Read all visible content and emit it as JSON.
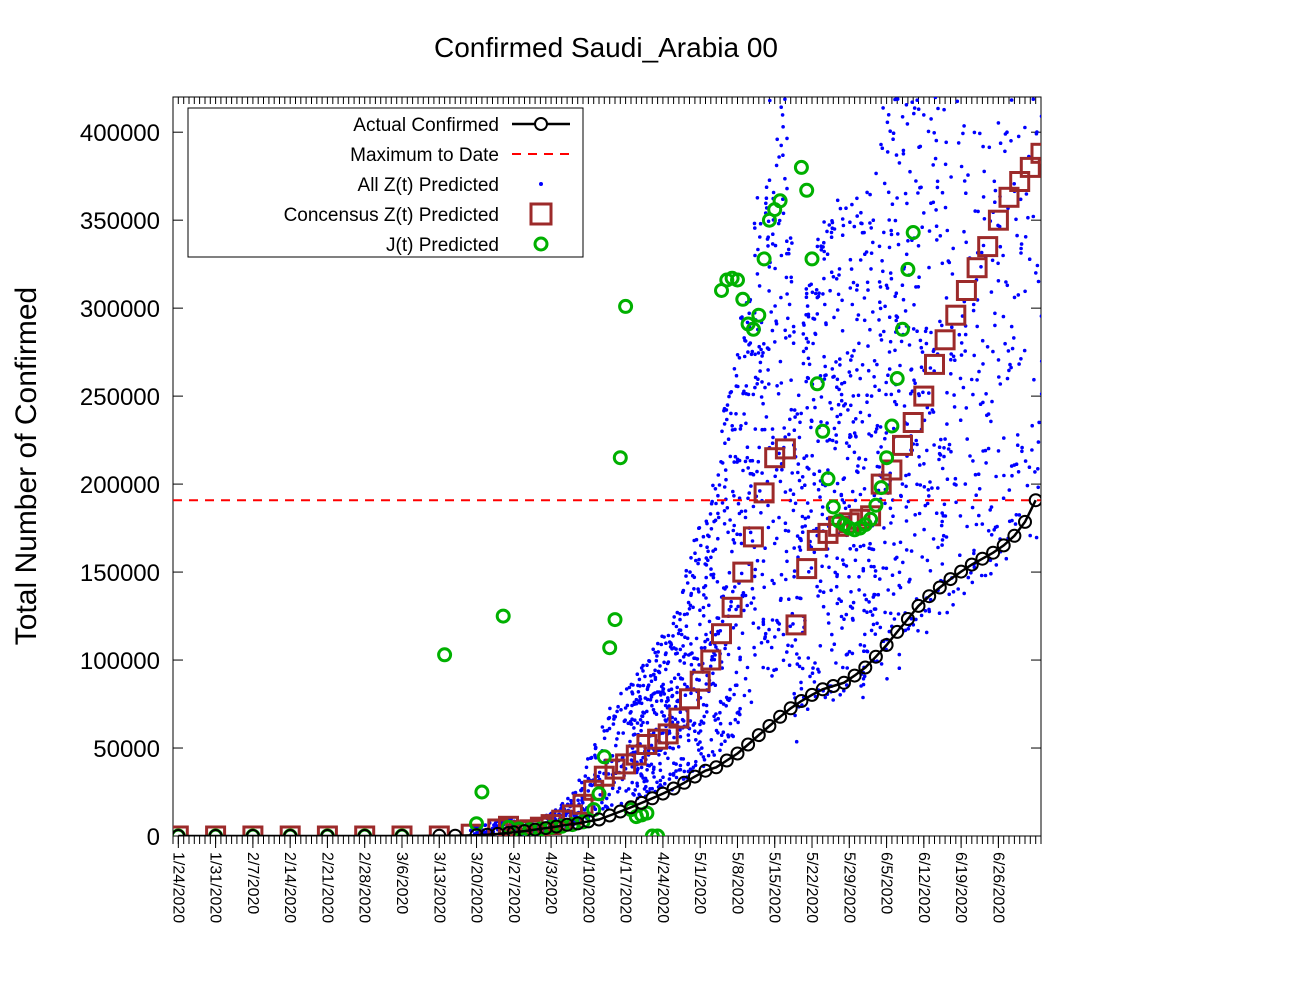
{
  "chart_data": {
    "type": "scatter",
    "title": "Confirmed Saudi_Arabia 00",
    "xlabel": "",
    "ylabel": "Total Number of Confirmed",
    "ylim": [
      0,
      420000
    ],
    "yticks": [
      0,
      50000,
      100000,
      150000,
      200000,
      250000,
      300000,
      350000,
      400000
    ],
    "ytick_labels": [
      "0",
      "50000",
      "100000",
      "150000",
      "200000",
      "250000",
      "300000",
      "350000",
      "400000"
    ],
    "xrange_days": [
      -1,
      162
    ],
    "xtick_labels": [
      "1/24/2020",
      "1/31/2020",
      "2/7/2020",
      "2/14/2020",
      "2/21/2020",
      "2/28/2020",
      "3/6/2020",
      "3/13/2020",
      "3/20/2020",
      "3/27/2020",
      "4/3/2020",
      "4/10/2020",
      "4/17/2020",
      "4/24/2020",
      "5/1/2020",
      "5/8/2020",
      "5/15/2020",
      "5/22/2020",
      "5/29/2020",
      "6/5/2020",
      "6/12/2020",
      "6/19/2020",
      "6/26/2020"
    ],
    "legend_position": "top-left",
    "grid": false,
    "max_to_date": 190823,
    "series": [
      {
        "name": "Actual Confirmed",
        "color": "#000000",
        "x": [
          0,
          7,
          14,
          21,
          28,
          35,
          42,
          49,
          52,
          56,
          58,
          60,
          62,
          63,
          65,
          67,
          69,
          71,
          73,
          75,
          77,
          79,
          81,
          83,
          85,
          87,
          89,
          91,
          93,
          95,
          97,
          99,
          101,
          103,
          105,
          107,
          109,
          111,
          113,
          115,
          117,
          119,
          121,
          123,
          125,
          127,
          129,
          131,
          133,
          135,
          137,
          139,
          141,
          143,
          145,
          147,
          149,
          151,
          153,
          155,
          157,
          159,
          161
        ],
        "values": [
          0,
          0,
          0,
          0,
          0,
          0,
          0,
          86,
          171,
          392,
          767,
          1203,
          1720,
          2179,
          2795,
          3651,
          4462,
          5369,
          6380,
          7142,
          8274,
          9362,
          11631,
          13930,
          16299,
          18811,
          21402,
          24097,
          27011,
          30251,
          33731,
          37136,
          39048,
          42925,
          46869,
          52016,
          57345,
          62545,
          67719,
          72560,
          76726,
          80185,
          83384,
          85261,
          87142,
          91182,
          95748,
          101914,
          108571,
          116021,
          123308,
          130774,
          136315,
          141234,
          145991,
          150292,
          154233,
          157612,
          161005,
          165154,
          170639,
          178504,
          190823
        ]
      },
      {
        "name": "Maximum to Date",
        "color": "#ff0000",
        "values": [
          190823
        ]
      },
      {
        "name": "All Z(t) Predicted",
        "color": "#0000ff",
        "x": [],
        "values": []
      },
      {
        "name": "Concensus Z(t) Predicted",
        "color": "#9c2a2a",
        "x": [
          0,
          7,
          14,
          21,
          28,
          35,
          42,
          49,
          55,
          60,
          62,
          64,
          66,
          68,
          70,
          72,
          74,
          76,
          78,
          80,
          82,
          84,
          86,
          88,
          90,
          92,
          94,
          96,
          98,
          100,
          102,
          104,
          106,
          108,
          110,
          112,
          114,
          116,
          118,
          120,
          122,
          124,
          126,
          128,
          130,
          132,
          134,
          136,
          138,
          140,
          142,
          144,
          146,
          148,
          150,
          152,
          154,
          156,
          158,
          160,
          162
        ],
        "values": [
          0,
          0,
          0,
          0,
          0,
          0,
          0,
          0,
          1000,
          4000,
          5500,
          3000,
          3500,
          5000,
          6500,
          9000,
          12000,
          18000,
          26000,
          34000,
          38000,
          41000,
          46000,
          52000,
          55000,
          58000,
          67000,
          78000,
          88000,
          100000,
          115000,
          130000,
          150000,
          170000,
          195000,
          215000,
          220000,
          120000,
          152000,
          168000,
          172000,
          176000,
          178000,
          180000,
          182000,
          200000,
          208000,
          222000,
          235000,
          250000,
          268000,
          282000,
          296000,
          310000,
          323000,
          335000,
          350000,
          363000,
          372000,
          380000,
          388000
        ]
      },
      {
        "name": "J(t) Predicted",
        "color": "#00b000",
        "x": [
          0,
          7,
          14,
          21,
          28,
          35,
          42,
          50,
          56,
          57,
          61,
          62,
          64,
          66,
          68,
          70,
          72,
          74,
          76,
          78,
          79,
          80,
          81,
          82,
          83,
          84,
          85,
          86,
          87,
          88,
          89,
          90,
          102,
          103,
          104,
          105,
          106,
          107,
          108,
          109,
          110,
          111,
          112,
          113,
          114,
          115,
          116,
          117,
          118,
          119,
          120,
          121,
          122,
          123,
          124,
          125,
          126,
          127,
          128,
          129,
          130,
          131,
          132,
          133,
          134,
          135,
          136,
          137,
          138,
          139,
          140,
          141,
          142,
          143,
          144,
          145,
          146,
          147,
          148,
          149,
          150,
          151,
          152,
          153,
          154,
          155,
          156,
          157,
          158,
          159,
          160,
          161,
          162
        ],
        "values": [
          0,
          0,
          0,
          0,
          0,
          0,
          0,
          103000,
          7000,
          25000,
          125000,
          5000,
          4000,
          3500,
          4000,
          5000,
          5500,
          6500,
          8000,
          15000,
          24000,
          45000,
          107000,
          123000,
          215000,
          301000,
          15000,
          11000,
          12000,
          13000,
          0,
          0,
          310000,
          316000,
          317000,
          316000,
          305000,
          291000,
          288000,
          296000,
          328000,
          350000,
          356000,
          361000,
          0,
          0,
          0,
          380000,
          367000,
          328000,
          257000,
          230000,
          203000,
          187000,
          179000,
          177000,
          175000,
          174000,
          175000,
          177000,
          180000,
          188000,
          198000,
          215000,
          233000,
          260000,
          288000,
          322000,
          343000,
          0,
          0,
          0,
          0,
          0,
          0,
          0,
          0,
          0,
          0,
          0,
          0,
          0,
          0,
          0,
          0,
          0,
          0,
          0,
          0,
          0,
          0,
          0,
          0
        ]
      }
    ]
  },
  "legend": [
    {
      "label": "Actual Confirmed",
      "icon": "line-circle-icon"
    },
    {
      "label": "Maximum to Date",
      "icon": "dashed-line-icon"
    },
    {
      "label": "All Z(t) Predicted",
      "icon": "dot-icon"
    },
    {
      "label": "Concensus Z(t) Predicted",
      "icon": "square-icon"
    },
    {
      "label": "J(t) Predicted",
      "icon": "circle-icon"
    }
  ]
}
